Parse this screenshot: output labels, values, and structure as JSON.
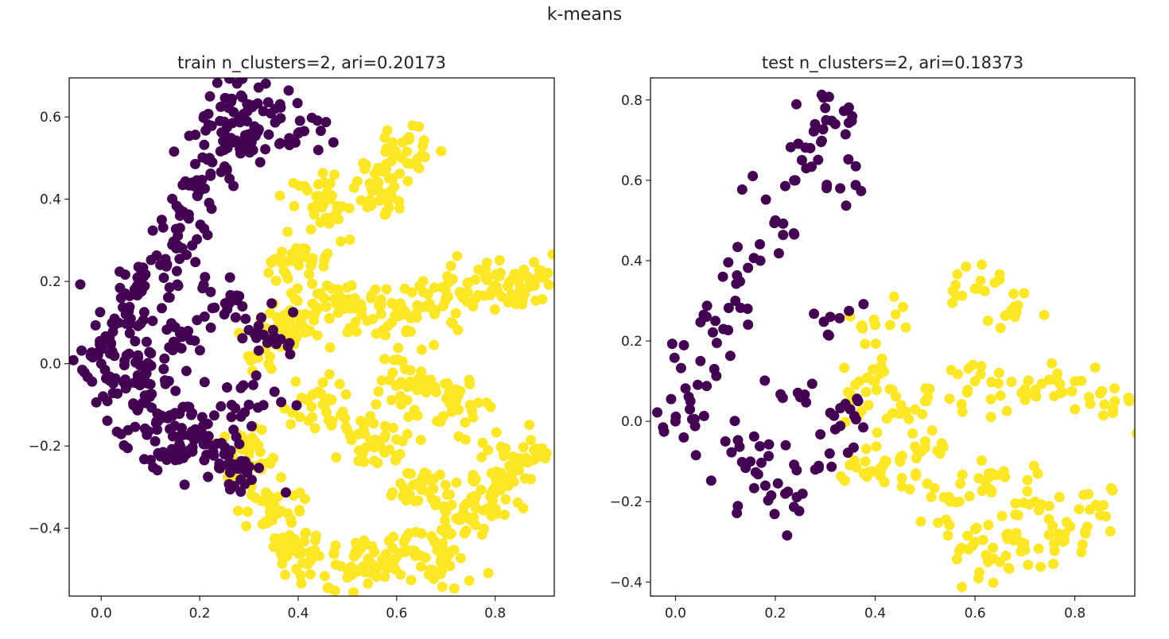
{
  "suptitle": "k-means",
  "colors": {
    "cluster0": "#440154",
    "cluster1": "#fde725"
  },
  "chart_data": [
    {
      "type": "scatter",
      "title": "train n_clusters=2, ari=0.20173",
      "xlabel": "",
      "ylabel": "",
      "xlim": [
        -0.065,
        0.92
      ],
      "ylim": [
        -0.565,
        0.695
      ],
      "xticks": [
        0.0,
        0.2,
        0.4,
        0.6,
        0.8
      ],
      "xtick_labels": [
        "0.0",
        "0.2",
        "0.4",
        "0.6",
        "0.8"
      ],
      "yticks": [
        -0.4,
        -0.2,
        0.0,
        0.2,
        0.4,
        0.6
      ],
      "ytick_labels": [
        "−0.4",
        "−0.2",
        "0.0",
        "0.2",
        "0.4",
        "0.6"
      ],
      "grid": false,
      "series": [
        {
          "cluster": 0,
          "color": "#440154",
          "approx_points": 1400,
          "points": [
            [
              0.0,
              0.0
            ],
            [
              0.02,
              0.05
            ],
            [
              0.05,
              0.12
            ],
            [
              0.08,
              0.18
            ],
            [
              0.12,
              0.24
            ],
            [
              0.16,
              0.33
            ],
            [
              0.2,
              0.42
            ],
            [
              0.22,
              0.5
            ],
            [
              0.25,
              0.56
            ],
            [
              0.28,
              0.6
            ],
            [
              0.3,
              0.63
            ],
            [
              0.32,
              0.57
            ],
            [
              0.4,
              0.56
            ],
            [
              0.1,
              -0.05
            ],
            [
              0.15,
              -0.12
            ],
            [
              0.2,
              -0.18
            ],
            [
              0.25,
              -0.22
            ],
            [
              0.27,
              -0.25
            ],
            [
              0.3,
              -0.1
            ],
            [
              0.33,
              0.07
            ],
            [
              0.25,
              0.12
            ],
            [
              0.15,
              0.05
            ],
            [
              0.05,
              -0.06
            ],
            [
              0.09,
              -0.16
            ],
            [
              0.14,
              -0.22
            ]
          ]
        },
        {
          "cluster": 1,
          "color": "#fde725",
          "approx_points": 2500,
          "points": [
            [
              0.35,
              0.05
            ],
            [
              0.4,
              0.12
            ],
            [
              0.5,
              0.15
            ],
            [
              0.6,
              0.12
            ],
            [
              0.7,
              0.16
            ],
            [
              0.8,
              0.19
            ],
            [
              0.88,
              0.19
            ],
            [
              0.45,
              0.4
            ],
            [
              0.55,
              0.42
            ],
            [
              0.61,
              0.5
            ],
            [
              0.4,
              0.25
            ],
            [
              0.3,
              -0.22
            ],
            [
              0.35,
              -0.35
            ],
            [
              0.4,
              -0.45
            ],
            [
              0.5,
              -0.5
            ],
            [
              0.6,
              -0.47
            ],
            [
              0.7,
              -0.48
            ],
            [
              0.8,
              -0.3
            ],
            [
              0.85,
              -0.23
            ],
            [
              0.55,
              -0.2
            ],
            [
              0.65,
              -0.3
            ],
            [
              0.75,
              -0.38
            ],
            [
              0.45,
              -0.1
            ],
            [
              0.62,
              -0.05
            ],
            [
              0.72,
              -0.1
            ]
          ]
        }
      ]
    },
    {
      "type": "scatter",
      "title": "test n_clusters=2, ari=0.18373",
      "xlabel": "",
      "ylabel": "",
      "xlim": [
        -0.05,
        0.92
      ],
      "ylim": [
        -0.435,
        0.855
      ],
      "xticks": [
        0.0,
        0.2,
        0.4,
        0.6,
        0.8
      ],
      "xtick_labels": [
        "0.0",
        "0.2",
        "0.4",
        "0.6",
        "0.8"
      ],
      "yticks": [
        -0.4,
        -0.2,
        0.0,
        0.2,
        0.4,
        0.6,
        0.8
      ],
      "ytick_labels": [
        "−0.4",
        "−0.2",
        "0.0",
        "0.2",
        "0.4",
        "0.6",
        "0.8"
      ],
      "grid": false,
      "series": [
        {
          "cluster": 0,
          "color": "#440154",
          "approx_points": 450,
          "points": [
            [
              0.0,
              0.0
            ],
            [
              0.03,
              0.05
            ],
            [
              0.05,
              0.15
            ],
            [
              0.08,
              0.25
            ],
            [
              0.12,
              0.3
            ],
            [
              0.17,
              0.4
            ],
            [
              0.2,
              0.5
            ],
            [
              0.24,
              0.6
            ],
            [
              0.27,
              0.68
            ],
            [
              0.3,
              0.78
            ],
            [
              0.32,
              0.74
            ],
            [
              0.33,
              0.58
            ],
            [
              0.31,
              0.26
            ],
            [
              0.1,
              -0.05
            ],
            [
              0.15,
              -0.1
            ],
            [
              0.18,
              -0.16
            ],
            [
              0.22,
              -0.18
            ],
            [
              0.28,
              -0.12
            ],
            [
              0.32,
              -0.02
            ],
            [
              0.25,
              0.06
            ],
            [
              0.35,
              0.03
            ]
          ]
        },
        {
          "cluster": 1,
          "color": "#fde725",
          "approx_points": 850,
          "points": [
            [
              0.35,
              0.05
            ],
            [
              0.4,
              0.1
            ],
            [
              0.5,
              0.05
            ],
            [
              0.6,
              0.1
            ],
            [
              0.7,
              0.08
            ],
            [
              0.8,
              0.1
            ],
            [
              0.88,
              0.05
            ],
            [
              0.4,
              0.24
            ],
            [
              0.6,
              0.33
            ],
            [
              0.68,
              0.28
            ],
            [
              0.5,
              -0.05
            ],
            [
              0.55,
              -0.2
            ],
            [
              0.6,
              -0.3
            ],
            [
              0.65,
              -0.35
            ],
            [
              0.7,
              -0.32
            ],
            [
              0.78,
              -0.28
            ],
            [
              0.83,
              -0.22
            ],
            [
              0.45,
              -0.1
            ],
            [
              0.62,
              -0.15
            ],
            [
              0.72,
              -0.2
            ],
            [
              0.38,
              -0.1
            ]
          ]
        }
      ]
    }
  ]
}
